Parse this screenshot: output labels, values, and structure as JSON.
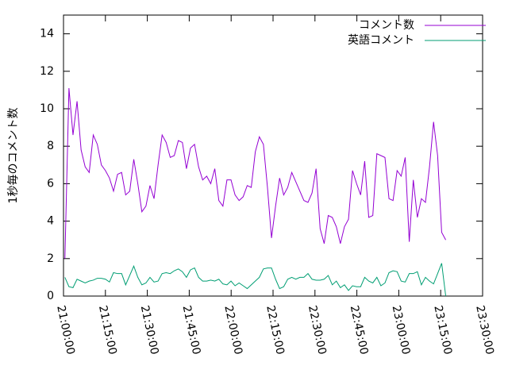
{
  "chart_data": {
    "type": "line",
    "y_label": "1秒毎のコメント数",
    "legend": "top-right",
    "xlim": [
      "21:00:00",
      "23:30:00"
    ],
    "xticks": [
      "21:00:00",
      "21:15:00",
      "21:30:00",
      "21:45:00",
      "22:00:00",
      "22:15:00",
      "22:30:00",
      "22:45:00",
      "23:00:00",
      "23:15:00",
      "23:30:00"
    ],
    "ylim": [
      0,
      15
    ],
    "yticks": [
      0,
      2,
      4,
      6,
      8,
      10,
      12,
      14
    ],
    "x": [
      "21:00:30",
      "21:01:57",
      "21:03:24",
      "21:04:51",
      "21:06:18",
      "21:07:45",
      "21:09:12",
      "21:10:39",
      "21:12:06",
      "21:13:33",
      "21:15:00",
      "21:16:27",
      "21:17:54",
      "21:19:21",
      "21:20:48",
      "21:22:15",
      "21:23:42",
      "21:25:09",
      "21:26:36",
      "21:28:03",
      "21:29:30",
      "21:30:57",
      "21:32:24",
      "21:33:51",
      "21:35:18",
      "21:36:45",
      "21:38:12",
      "21:39:39",
      "21:41:06",
      "21:42:33",
      "21:44:00",
      "21:45:27",
      "21:46:54",
      "21:48:21",
      "21:49:48",
      "21:51:15",
      "21:52:42",
      "21:54:09",
      "21:55:36",
      "21:57:03",
      "21:58:30",
      "21:59:57",
      "22:01:24",
      "22:02:51",
      "22:04:18",
      "22:05:45",
      "22:07:12",
      "22:08:39",
      "22:10:06",
      "22:11:33",
      "22:13:00",
      "22:14:27",
      "22:15:54",
      "22:17:21",
      "22:18:48",
      "22:20:15",
      "22:21:42",
      "22:23:09",
      "22:24:36",
      "22:26:03",
      "22:27:30",
      "22:28:57",
      "22:30:24",
      "22:31:51",
      "22:33:18",
      "22:34:45",
      "22:36:12",
      "22:37:39",
      "22:39:06",
      "22:40:33",
      "22:42:00",
      "22:43:27",
      "22:44:54",
      "22:46:21",
      "22:47:48",
      "22:49:15",
      "22:50:42",
      "22:52:09",
      "22:53:36",
      "22:55:03",
      "22:56:30",
      "22:57:57",
      "22:59:24",
      "23:00:51",
      "23:02:18",
      "23:03:45",
      "23:05:12",
      "23:06:39",
      "23:08:06",
      "23:09:33",
      "23:11:00",
      "23:12:27",
      "23:13:54",
      "23:15:21",
      "23:16:48"
    ],
    "series": [
      {
        "name": "コメント数",
        "color": "#9400d3",
        "values": [
          2.0,
          11.1,
          8.6,
          10.4,
          7.8,
          6.9,
          6.6,
          8.6,
          8.1,
          7.0,
          6.7,
          6.3,
          5.6,
          6.5,
          6.6,
          5.4,
          5.6,
          7.3,
          6.0,
          4.5,
          4.8,
          5.9,
          5.2,
          7.0,
          8.6,
          8.2,
          7.4,
          7.5,
          8.3,
          8.2,
          6.8,
          7.9,
          8.1,
          6.9,
          6.2,
          6.4,
          6.0,
          6.8,
          5.1,
          4.8,
          6.2,
          6.2,
          5.4,
          5.1,
          5.3,
          5.9,
          5.8,
          7.7,
          8.5,
          8.1,
          5.8,
          3.1,
          4.8,
          6.3,
          5.4,
          5.8,
          6.6,
          6.1,
          5.6,
          5.1,
          5.0,
          5.5,
          6.8,
          3.6,
          2.8,
          4.3,
          4.2,
          3.7,
          2.8,
          3.7,
          4.1,
          6.7,
          6.0,
          5.4,
          7.2,
          4.2,
          4.3,
          7.6,
          7.5,
          7.4,
          5.2,
          5.1,
          6.7,
          6.4,
          7.4,
          2.9,
          6.2,
          4.2,
          5.2,
          5.0,
          6.9,
          9.3,
          7.5,
          3.4,
          3.0
        ]
      },
      {
        "name": "英語コメント",
        "color": "#009e73",
        "values": [
          1.0,
          0.5,
          0.45,
          0.9,
          0.8,
          0.7,
          0.8,
          0.85,
          0.95,
          0.95,
          0.9,
          0.75,
          1.25,
          1.2,
          1.2,
          0.6,
          1.1,
          1.6,
          1.0,
          0.6,
          0.7,
          1.0,
          0.75,
          0.8,
          1.2,
          1.25,
          1.2,
          1.35,
          1.45,
          1.3,
          1.0,
          1.4,
          1.5,
          1.0,
          0.8,
          0.8,
          0.85,
          0.8,
          0.9,
          0.65,
          0.6,
          0.8,
          0.55,
          0.7,
          0.55,
          0.4,
          0.6,
          0.8,
          1.0,
          1.45,
          1.5,
          1.5,
          0.9,
          0.4,
          0.5,
          0.9,
          1.0,
          0.9,
          1.0,
          1.0,
          1.2,
          0.9,
          0.85,
          0.85,
          0.9,
          1.1,
          0.6,
          0.8,
          0.45,
          0.6,
          0.3,
          0.55,
          0.5,
          0.5,
          1.0,
          0.8,
          0.7,
          1.0,
          0.55,
          0.7,
          1.25,
          1.35,
          1.3,
          0.8,
          0.75,
          1.2,
          1.2,
          1.3,
          0.6,
          1.0,
          0.8,
          0.65,
          1.2,
          1.75,
          0.0
        ]
      }
    ]
  }
}
